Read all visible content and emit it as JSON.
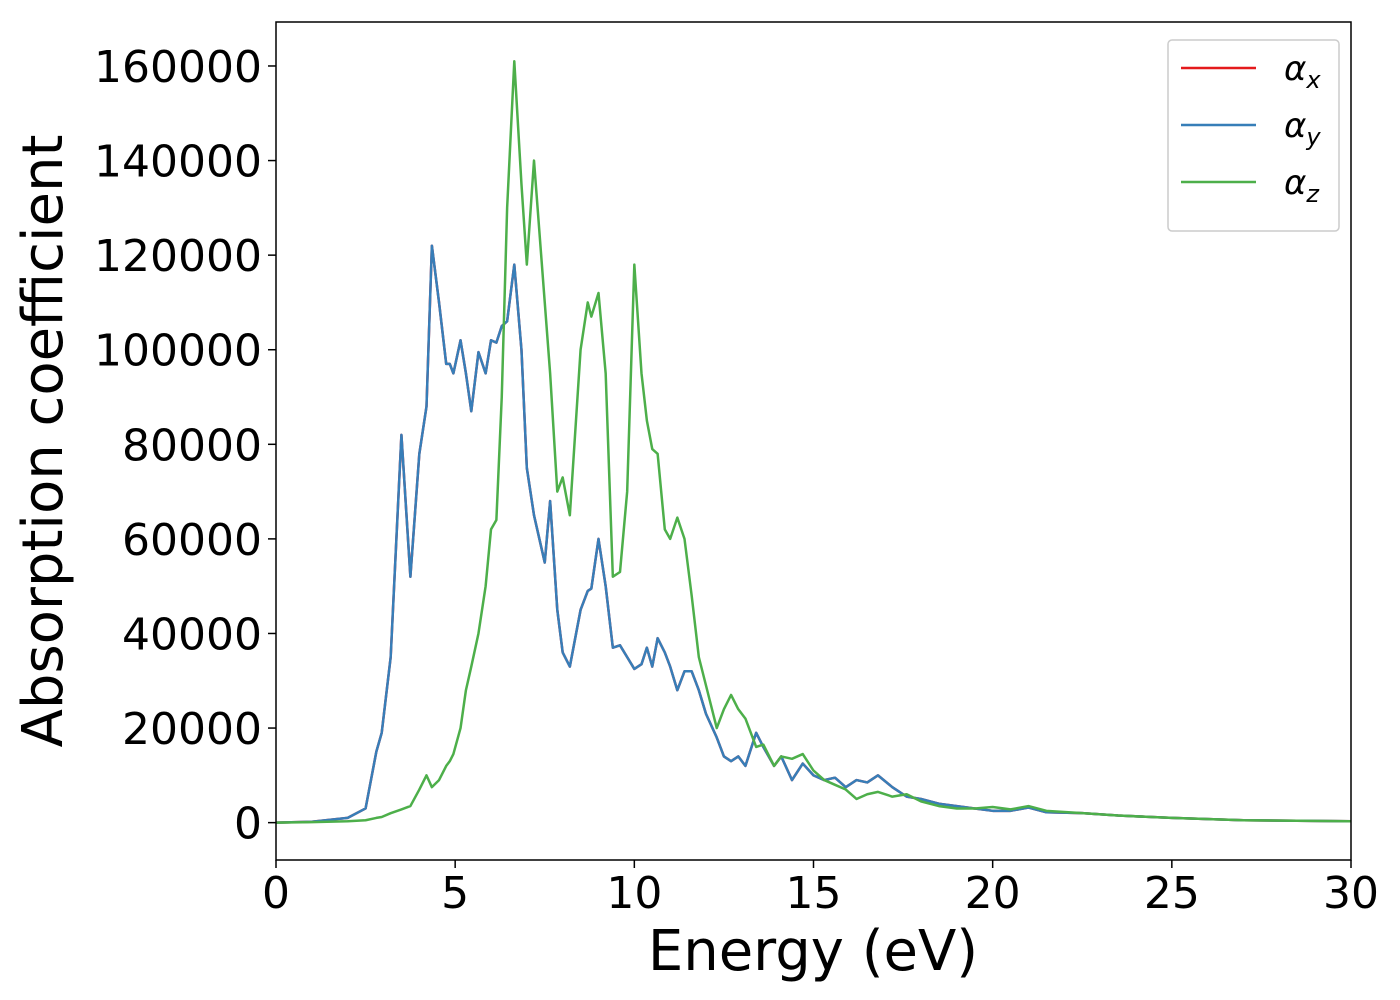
{
  "chart_data": {
    "type": "line",
    "xlabel": "Energy (eV)",
    "ylabel": "Absorption coefficient",
    "x": [
      0,
      1,
      2,
      2.5,
      2.8,
      2.95,
      3.2,
      3.5,
      3.75,
      4.0,
      4.2,
      4.35,
      4.55,
      4.75,
      4.85,
      4.95,
      5.15,
      5.3,
      5.45,
      5.65,
      5.85,
      6.0,
      6.15,
      6.3,
      6.45,
      6.65,
      6.85,
      7.0,
      7.2,
      7.5,
      7.65,
      7.85,
      8.0,
      8.2,
      8.5,
      8.7,
      8.8,
      9.0,
      9.2,
      9.4,
      9.6,
      9.8,
      10.0,
      10.2,
      10.35,
      10.5,
      10.65,
      10.85,
      11.0,
      11.2,
      11.4,
      11.6,
      11.8,
      12.0,
      12.3,
      12.5,
      12.7,
      12.9,
      13.1,
      13.4,
      13.6,
      13.9,
      14.1,
      14.4,
      14.7,
      15.0,
      15.3,
      15.6,
      15.9,
      16.2,
      16.5,
      16.8,
      17.2,
      17.6,
      18.0,
      18.5,
      19.0,
      19.5,
      20.0,
      20.5,
      21.0,
      21.5,
      22.5,
      23.5,
      25,
      27,
      30
    ],
    "series": [
      {
        "name": "αx",
        "color": "#e41a1c",
        "values": [
          0,
          200,
          1000,
          3000,
          15000,
          19000,
          35000,
          82000,
          52000,
          78000,
          88000,
          122000,
          110000,
          97000,
          97000,
          95000,
          102000,
          95000,
          87000,
          99500,
          95000,
          102000,
          101500,
          105000,
          106000,
          118000,
          100000,
          75000,
          65000,
          55000,
          68000,
          45000,
          36000,
          33000,
          45000,
          49000,
          49500,
          60000,
          50000,
          37000,
          37500,
          35000,
          32500,
          33500,
          37000,
          33000,
          39000,
          36000,
          33000,
          28000,
          32000,
          32000,
          28000,
          23000,
          18000,
          14000,
          13000,
          14000,
          12000,
          19000,
          16000,
          12000,
          14000,
          9000,
          12500,
          10000,
          9000,
          9500,
          7500,
          9000,
          8500,
          10000,
          7500,
          5500,
          5000,
          4000,
          3500,
          3000,
          2500,
          2500,
          3200,
          2200,
          2000,
          1500,
          1000,
          500,
          300
        ]
      },
      {
        "name": "αy",
        "color": "#377eb8",
        "values": [
          0,
          200,
          1000,
          3000,
          15000,
          19000,
          35000,
          82000,
          52000,
          78000,
          88000,
          122000,
          110000,
          97000,
          97000,
          95000,
          102000,
          95000,
          87000,
          99500,
          95000,
          102000,
          101500,
          105000,
          106000,
          118000,
          100000,
          75000,
          65000,
          55000,
          68000,
          45000,
          36000,
          33000,
          45000,
          49000,
          49500,
          60000,
          50000,
          37000,
          37500,
          35000,
          32500,
          33500,
          37000,
          33000,
          39000,
          36000,
          33000,
          28000,
          32000,
          32000,
          28000,
          23000,
          18000,
          14000,
          13000,
          14000,
          12000,
          19000,
          16000,
          12000,
          14000,
          9000,
          12500,
          10000,
          9000,
          9500,
          7500,
          9000,
          8500,
          10000,
          7500,
          5500,
          5000,
          4000,
          3500,
          3000,
          2500,
          2500,
          3200,
          2200,
          2000,
          1500,
          1000,
          500,
          300
        ]
      },
      {
        "name": "αz",
        "color": "#4daf4a",
        "values": [
          0,
          100,
          300,
          500,
          1000,
          1200,
          2000,
          2800,
          3500,
          7000,
          10000,
          7500,
          9000,
          12000,
          13000,
          14500,
          20000,
          28000,
          33000,
          40000,
          50000,
          62000,
          64000,
          90000,
          130000,
          161000,
          135000,
          118000,
          140000,
          110000,
          95000,
          70000,
          73000,
          65000,
          100000,
          110000,
          107000,
          112000,
          95000,
          52000,
          53000,
          70000,
          118000,
          95000,
          85000,
          79000,
          78000,
          62000,
          60000,
          64500,
          60000,
          48000,
          35000,
          29000,
          20000,
          24000,
          27000,
          24000,
          22000,
          16000,
          16500,
          12000,
          14000,
          13500,
          14500,
          11000,
          9000,
          8000,
          7000,
          5000,
          6000,
          6500,
          5500,
          6000,
          4500,
          3500,
          3000,
          3000,
          3300,
          2800,
          3500,
          2500,
          2000,
          1500,
          1000,
          500,
          300
        ]
      }
    ],
    "xlim": [
      0,
      30
    ],
    "xticks": [
      0,
      5,
      10,
      15,
      20,
      25,
      30
    ],
    "ylim": [
      -7900,
      169300
    ],
    "yticks": [
      0,
      20000,
      40000,
      60000,
      80000,
      100000,
      120000,
      140000,
      160000
    ],
    "legend": "upper right",
    "grid": false
  }
}
